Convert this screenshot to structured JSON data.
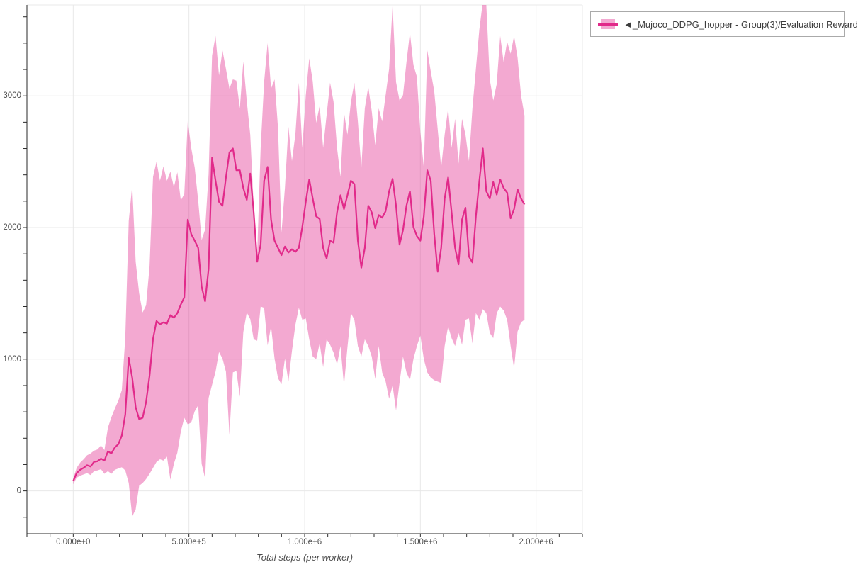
{
  "window": {
    "background": "#ffffff"
  },
  "legend": {
    "items": [
      {
        "label": "◄_Mujoco_DDPG_hopper - Group(3)/Evaluation Reward",
        "line_color": "#e12a8a",
        "band_color": "#f3a9d1"
      }
    ],
    "border_color": "#aaaaaa",
    "text_color": "#3d3d3d"
  },
  "colors": {
    "grid": "#e8e8e8",
    "axis": "#2a2a2a",
    "tick_text": "#4d4d4d",
    "axis_title": "#4d4d4d"
  },
  "chart_data": {
    "type": "line",
    "title": "",
    "xlabel": "Total steps (per worker)",
    "ylabel": "",
    "grid": true,
    "legend_position": "top-right-outside",
    "x_axis": {
      "range": [
        -200000,
        2200000
      ],
      "tick_values": [
        0,
        500000,
        1000000,
        1500000,
        2000000
      ],
      "tick_labels": [
        "0.000e+0",
        "5.000e+5",
        "1.000e+6",
        "1.500e+6",
        "2.000e+6"
      ],
      "minor_tick_step": 100000
    },
    "y_axis": {
      "range": [
        -325,
        3690
      ],
      "tick_values": [
        0,
        1000,
        2000,
        3000
      ],
      "tick_labels": [
        "0",
        "1000",
        "2000",
        "3000"
      ],
      "minor_tick_step": 200
    },
    "series": [
      {
        "name": "◄_Mujoco_DDPG_hopper - Group(3)/Evaluation Reward",
        "line_color": "#e12a8a",
        "band_fill": "rgba(225,40,140,0.4)",
        "steps": [
          0,
          15000,
          30000,
          45000,
          60000,
          75000,
          90000,
          105000,
          120000,
          135000,
          150000,
          165000,
          180000,
          195000,
          210000,
          225000,
          240000,
          255000,
          270000,
          285000,
          300000,
          315000,
          330000,
          345000,
          360000,
          375000,
          390000,
          405000,
          420000,
          435000,
          450000,
          465000,
          480000,
          495000,
          510000,
          525000,
          540000,
          555000,
          570000,
          585000,
          600000,
          615000,
          630000,
          645000,
          660000,
          675000,
          690000,
          705000,
          720000,
          735000,
          750000,
          765000,
          780000,
          795000,
          810000,
          825000,
          840000,
          855000,
          870000,
          885000,
          900000,
          915000,
          930000,
          945000,
          960000,
          975000,
          990000,
          1005000,
          1020000,
          1035000,
          1050000,
          1065000,
          1080000,
          1095000,
          1110000,
          1125000,
          1140000,
          1155000,
          1170000,
          1185000,
          1200000,
          1215000,
          1230000,
          1245000,
          1260000,
          1275000,
          1290000,
          1305000,
          1320000,
          1335000,
          1350000,
          1365000,
          1380000,
          1395000,
          1410000,
          1425000,
          1440000,
          1455000,
          1470000,
          1485000,
          1500000,
          1515000,
          1530000,
          1545000,
          1560000,
          1575000,
          1590000,
          1605000,
          1620000,
          1635000,
          1650000,
          1665000,
          1680000,
          1695000,
          1710000,
          1725000,
          1740000,
          1755000,
          1770000,
          1785000,
          1800000,
          1815000,
          1830000,
          1845000,
          1860000,
          1875000,
          1890000,
          1905000,
          1920000,
          1935000,
          1950000
        ],
        "mean": [
          75,
          135,
          160,
          175,
          195,
          185,
          220,
          225,
          245,
          230,
          300,
          285,
          330,
          355,
          420,
          580,
          1010,
          860,
          635,
          545,
          555,
          675,
          875,
          1155,
          1290,
          1265,
          1280,
          1270,
          1335,
          1315,
          1350,
          1415,
          1470,
          2060,
          1950,
          1900,
          1845,
          1550,
          1440,
          1685,
          2530,
          2355,
          2195,
          2165,
          2380,
          2570,
          2600,
          2435,
          2435,
          2300,
          2210,
          2410,
          2115,
          1740,
          1870,
          2355,
          2460,
          2060,
          1900,
          1845,
          1790,
          1855,
          1810,
          1835,
          1815,
          1845,
          2005,
          2195,
          2365,
          2220,
          2085,
          2065,
          1845,
          1765,
          1900,
          1885,
          2115,
          2245,
          2140,
          2245,
          2355,
          2330,
          1900,
          1695,
          1845,
          2165,
          2115,
          1995,
          2095,
          2075,
          2125,
          2275,
          2370,
          2165,
          1870,
          1980,
          2165,
          2275,
          2005,
          1935,
          1900,
          2085,
          2435,
          2355,
          1950,
          1665,
          1845,
          2220,
          2380,
          2115,
          1845,
          1720,
          2060,
          2150,
          1780,
          1735,
          2085,
          2355,
          2600,
          2275,
          2220,
          2345,
          2250,
          2365,
          2300,
          2265,
          2070,
          2140,
          2290,
          2220,
          2175
        ],
        "upper": [
          95,
          175,
          215,
          240,
          270,
          285,
          305,
          315,
          345,
          310,
          480,
          560,
          625,
          685,
          765,
          1160,
          2050,
          2320,
          1740,
          1500,
          1355,
          1410,
          1705,
          2385,
          2500,
          2355,
          2465,
          2355,
          2425,
          2305,
          2420,
          2205,
          2255,
          2810,
          2605,
          2455,
          2205,
          1905,
          1985,
          2405,
          3305,
          3455,
          3155,
          3345,
          3205,
          3055,
          3125,
          3115,
          2905,
          3260,
          2960,
          2705,
          2160,
          1800,
          2605,
          3105,
          3400,
          3055,
          3125,
          2755,
          1960,
          2305,
          2765,
          2505,
          2705,
          3100,
          2605,
          3005,
          3285,
          3110,
          2795,
          2925,
          2605,
          2855,
          3100,
          2955,
          2605,
          2385,
          2875,
          2705,
          2955,
          3100,
          2805,
          2455,
          2905,
          3070,
          2885,
          2625,
          2905,
          2805,
          3005,
          3205,
          3690,
          3105,
          2965,
          3005,
          3255,
          3480,
          3235,
          3145,
          2725,
          2455,
          3345,
          3185,
          3035,
          2745,
          2455,
          2705,
          2905,
          2605,
          2825,
          2485,
          2825,
          2705,
          2505,
          2905,
          3205,
          3505,
          3715,
          3690,
          3125,
          2965,
          3090,
          3455,
          3255,
          3410,
          3320,
          3455,
          3290,
          3005,
          2850
        ],
        "lower": [
          50,
          100,
          115,
          125,
          135,
          120,
          150,
          155,
          165,
          130,
          150,
          130,
          160,
          170,
          180,
          155,
          60,
          -195,
          -140,
          40,
          60,
          90,
          130,
          175,
          220,
          240,
          230,
          260,
          85,
          205,
          290,
          450,
          555,
          505,
          520,
          605,
          650,
          205,
          95,
          705,
          805,
          905,
          1055,
          1005,
          905,
          425,
          900,
          910,
          715,
          1205,
          1355,
          1305,
          1150,
          1140,
          1400,
          1390,
          1105,
          1250,
          1005,
          855,
          810,
          1005,
          830,
          1060,
          1260,
          1390,
          1300,
          1310,
          1150,
          1020,
          1000,
          1120,
          940,
          1150,
          1110,
          1050,
          960,
          1100,
          800,
          1090,
          1350,
          1300,
          1100,
          1020,
          1150,
          1100,
          1020,
          850,
          1100,
          900,
          830,
          700,
          800,
          610,
          820,
          1020,
          900,
          840,
          1000,
          1100,
          1180,
          1000,
          900,
          860,
          840,
          830,
          820,
          1100,
          1250,
          1160,
          1100,
          1200,
          1110,
          1300,
          1310,
          1120,
          1350,
          1300,
          1380,
          1350,
          1200,
          1160,
          1350,
          1400,
          1370,
          1300,
          1100,
          930,
          1210,
          1280,
          1300
        ]
      }
    ]
  }
}
